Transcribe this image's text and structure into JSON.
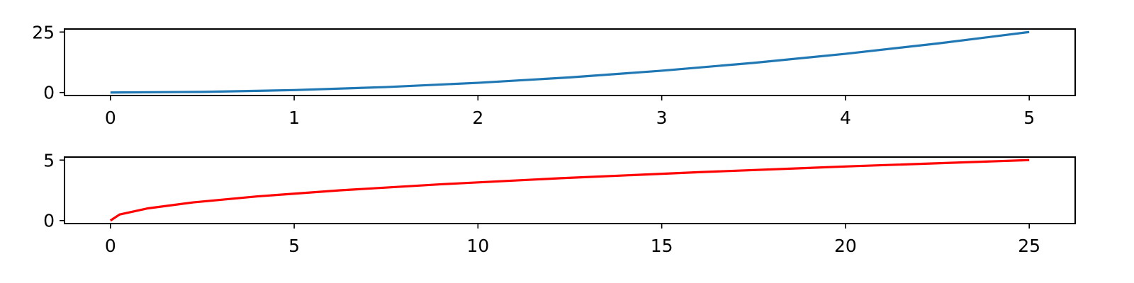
{
  "chart_data": [
    {
      "type": "line",
      "title": "",
      "xlabel": "",
      "ylabel": "",
      "xlim": [
        -0.25,
        5.25
      ],
      "ylim": [
        -1.25,
        26.25
      ],
      "xticks": [
        0,
        1,
        2,
        3,
        4,
        5
      ],
      "xtick_labels": [
        "0",
        "1",
        "2",
        "3",
        "4",
        "5"
      ],
      "yticks": [
        0,
        25
      ],
      "ytick_labels": [
        "0",
        "25"
      ],
      "grid": false,
      "series": [
        {
          "color": "#1f77b4",
          "x": [
            0,
            0.5,
            1,
            1.5,
            2,
            2.5,
            3,
            3.5,
            4,
            4.5,
            5
          ],
          "y": [
            0,
            0.25,
            1,
            2.25,
            4,
            6.25,
            9,
            12.25,
            16,
            20.25,
            25
          ]
        }
      ]
    },
    {
      "type": "line",
      "title": "",
      "xlabel": "",
      "ylabel": "",
      "xlim": [
        -1.25,
        26.25
      ],
      "ylim": [
        -0.25,
        5.25
      ],
      "xticks": [
        0,
        5,
        10,
        15,
        20,
        25
      ],
      "xtick_labels": [
        "0",
        "5",
        "10",
        "15",
        "20",
        "25"
      ],
      "yticks": [
        0,
        5
      ],
      "ytick_labels": [
        "0",
        "5"
      ],
      "grid": false,
      "series": [
        {
          "color": "#ff0000",
          "x": [
            0,
            0.25,
            1,
            2.25,
            4,
            6.25,
            9,
            12.25,
            16,
            20.25,
            25
          ],
          "y": [
            0,
            0.5,
            1,
            1.5,
            2,
            2.5,
            3,
            3.5,
            4,
            4.5,
            5
          ]
        }
      ]
    }
  ]
}
